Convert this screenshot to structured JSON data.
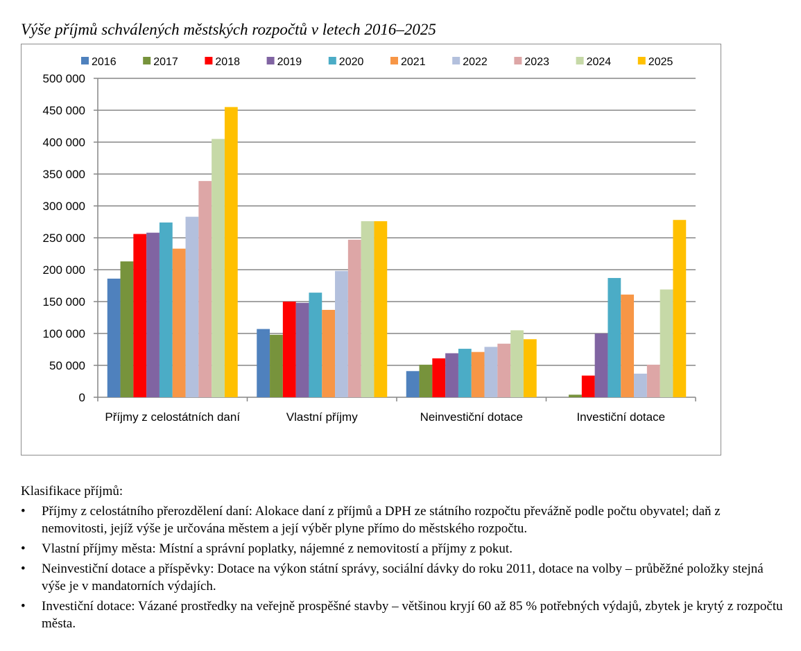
{
  "chart_data": {
    "type": "bar",
    "title": "Výše příjmů schválených městských rozpočtů v letech 2016–2025",
    "categories": [
      "Příjmy z celostátních daní",
      "Vlastní příjmy",
      "Neinvestiční dotace",
      "Investiční dotace"
    ],
    "series": [
      {
        "name": "2016",
        "color": "#4F81BD",
        "values": [
          186000,
          107000,
          41000,
          0
        ]
      },
      {
        "name": "2017",
        "color": "#77933C",
        "values": [
          213000,
          98000,
          51000,
          4000
        ]
      },
      {
        "name": "2018",
        "color": "#FF0000",
        "values": [
          256000,
          150000,
          61000,
          34000
        ]
      },
      {
        "name": "2019",
        "color": "#8064A2",
        "values": [
          258000,
          148000,
          69000,
          100000
        ]
      },
      {
        "name": "2020",
        "color": "#4BACC6",
        "values": [
          274000,
          164000,
          76000,
          187000
        ]
      },
      {
        "name": "2021",
        "color": "#F79646",
        "values": [
          233000,
          137000,
          71000,
          161000
        ]
      },
      {
        "name": "2022",
        "color": "#B3C0DD",
        "values": [
          283000,
          198000,
          79000,
          37000
        ]
      },
      {
        "name": "2023",
        "color": "#DDA6A6",
        "values": [
          339000,
          247000,
          84000,
          51000
        ]
      },
      {
        "name": "2024",
        "color": "#C6D9A7",
        "values": [
          405000,
          276000,
          105000,
          169000
        ]
      },
      {
        "name": "2025",
        "color": "#FFC000",
        "values": [
          455000,
          276000,
          91000,
          278000
        ]
      }
    ],
    "ylim": [
      0,
      500000
    ],
    "yticks": [
      0,
      50000,
      100000,
      150000,
      200000,
      250000,
      300000,
      350000,
      400000,
      450000,
      500000
    ],
    "ytick_labels": [
      "0",
      "50 000",
      "100 000",
      "150 000",
      "200 000",
      "250 000",
      "300 000",
      "350 000",
      "400 000",
      "450 000",
      "500 000"
    ],
    "grid": true,
    "legend_position": "top"
  },
  "notes": {
    "heading": "Klasifikace příjmů:",
    "bullet_symbol": "•",
    "items": [
      "Příjmy z celostátního přerozdělení daní: Alokace daní z příjmů a DPH ze státního rozpočtu převážně podle počtu obyvatel; daň z nemovitosti, jejíž výše je určována městem a její výběr plyne přímo do městského rozpočtu.",
      "Vlastní příjmy města: Místní a správní poplatky, nájemné z nemovitostí a příjmy z pokut.",
      "Neinvestiční dotace a příspěvky: Dotace na výkon státní správy, sociální dávky do roku 2011, dotace na volby – průběžné položky stejná výše je v mandatorních výdajích.",
      "Investiční dotace: Vázané prostředky na veřejně prospěšné stavby – většinou kryjí 60 až 85 % potřebných výdajů, zbytek je krytý z rozpočtu města."
    ]
  }
}
